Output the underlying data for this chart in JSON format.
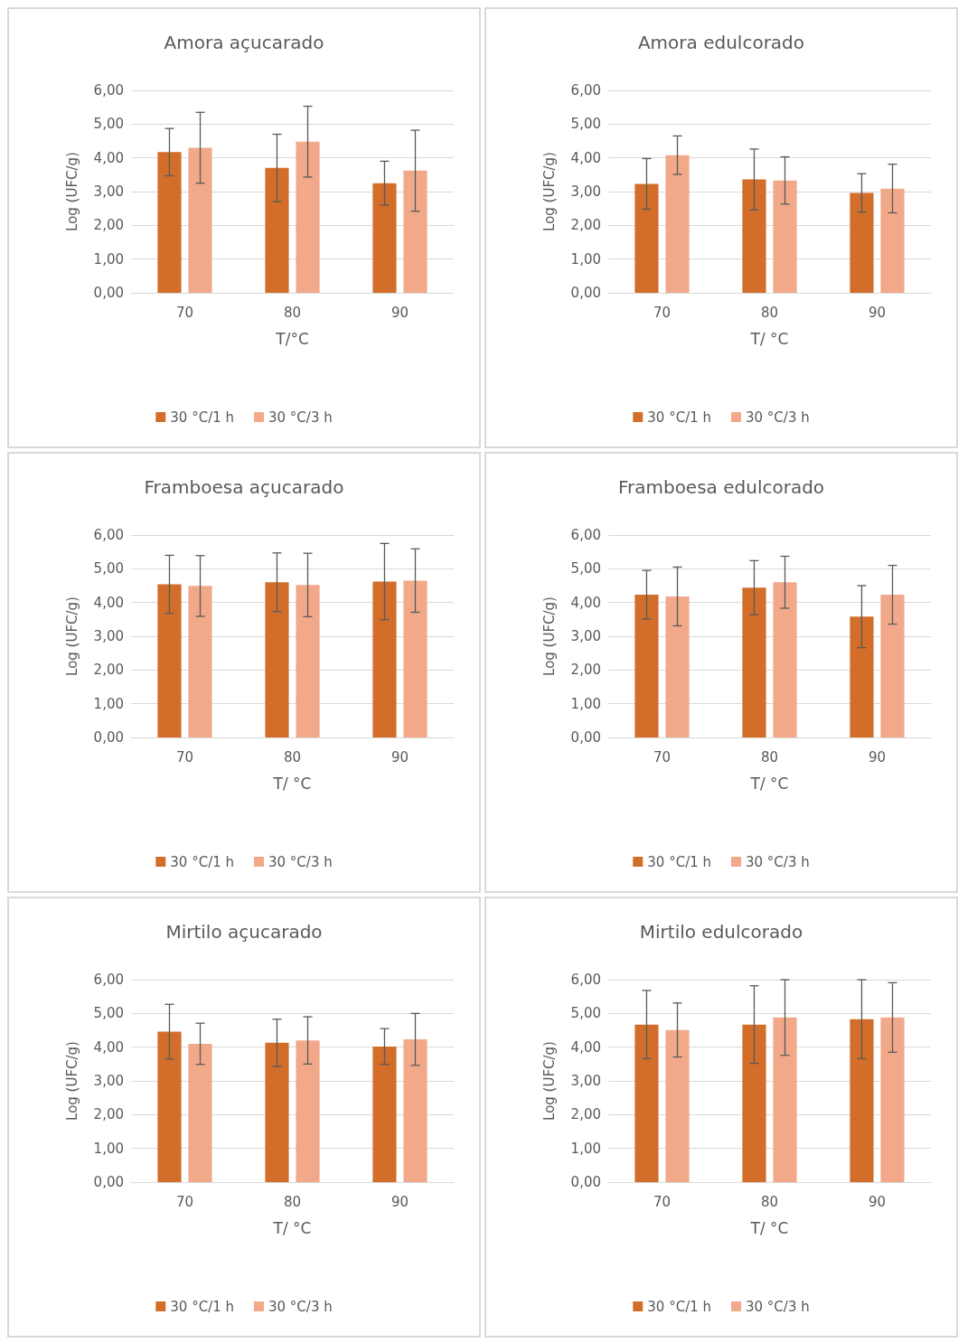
{
  "chart_data": [
    {
      "type": "bar",
      "title": "Amora açucarado",
      "xlabel": "T/°C",
      "ylabel": "Log (UFC/g)",
      "categories": [
        "70",
        "80",
        "90"
      ],
      "ylim": [
        0,
        6
      ],
      "yticks": [
        {
          "value": 0,
          "label": "0,00"
        },
        {
          "value": 1,
          "label": "1,00"
        },
        {
          "value": 2,
          "label": "2,00"
        },
        {
          "value": 3,
          "label": "3,00"
        },
        {
          "value": 4,
          "label": "4,00"
        },
        {
          "value": 5,
          "label": "5,00"
        },
        {
          "value": 6,
          "label": "6,00"
        }
      ],
      "grid": "y",
      "legend": "bottom",
      "series": [
        {
          "name": "30 °C/1 h",
          "color": "#d26e2a",
          "values": [
            4.17,
            3.7,
            3.25
          ],
          "errors": [
            0.7,
            1.0,
            0.65
          ]
        },
        {
          "name": "30 °C/3 h",
          "color": "#f2a98a",
          "values": [
            4.3,
            4.48,
            3.62
          ],
          "errors": [
            1.05,
            1.05,
            1.2
          ]
        }
      ]
    },
    {
      "type": "bar",
      "title": "Amora edulcorado",
      "xlabel": "T/ °C",
      "ylabel": "Log (UFC/g)",
      "categories": [
        "70",
        "80",
        "90"
      ],
      "ylim": [
        0,
        6
      ],
      "yticks": [
        {
          "value": 0,
          "label": "0,00"
        },
        {
          "value": 1,
          "label": "1,00"
        },
        {
          "value": 2,
          "label": "2,00"
        },
        {
          "value": 3,
          "label": "3,00"
        },
        {
          "value": 4,
          "label": "4,00"
        },
        {
          "value": 5,
          "label": "5,00"
        },
        {
          "value": 6,
          "label": "6,00"
        }
      ],
      "grid": "y",
      "legend": "bottom",
      "series": [
        {
          "name": "30 °C/1 h",
          "color": "#d26e2a",
          "values": [
            3.23,
            3.36,
            2.96
          ],
          "errors": [
            0.75,
            0.9,
            0.57
          ]
        },
        {
          "name": "30 °C/3 h",
          "color": "#f2a98a",
          "values": [
            4.08,
            3.33,
            3.09
          ],
          "errors": [
            0.57,
            0.7,
            0.72
          ]
        }
      ]
    },
    {
      "type": "bar",
      "title": "Framboesa açucarado",
      "xlabel": "T/ °C",
      "ylabel": "Log (UFC/g)",
      "categories": [
        "70",
        "80",
        "90"
      ],
      "ylim": [
        0,
        6
      ],
      "yticks": [
        {
          "value": 0,
          "label": "0,00"
        },
        {
          "value": 1,
          "label": "1,00"
        },
        {
          "value": 2,
          "label": "2,00"
        },
        {
          "value": 3,
          "label": "3,00"
        },
        {
          "value": 4,
          "label": "4,00"
        },
        {
          "value": 5,
          "label": "5,00"
        },
        {
          "value": 6,
          "label": "6,00"
        }
      ],
      "grid": "y",
      "legend": "bottom",
      "series": [
        {
          "name": "30 °C/1 h",
          "color": "#d26e2a",
          "values": [
            4.54,
            4.6,
            4.62
          ],
          "errors": [
            0.86,
            0.87,
            1.13
          ]
        },
        {
          "name": "30 °C/3 h",
          "color": "#f2a98a",
          "values": [
            4.49,
            4.52,
            4.65
          ],
          "errors": [
            0.9,
            0.94,
            0.94
          ]
        }
      ]
    },
    {
      "type": "bar",
      "title": "Framboesa edulcorado",
      "xlabel": "T/ °C",
      "ylabel": "Log (UFC/g)",
      "categories": [
        "70",
        "80",
        "90"
      ],
      "ylim": [
        0,
        6
      ],
      "yticks": [
        {
          "value": 0,
          "label": "0,00"
        },
        {
          "value": 1,
          "label": "1,00"
        },
        {
          "value": 2,
          "label": "2,00"
        },
        {
          "value": 3,
          "label": "3,00"
        },
        {
          "value": 4,
          "label": "4,00"
        },
        {
          "value": 5,
          "label": "5,00"
        },
        {
          "value": 6,
          "label": "6,00"
        }
      ],
      "grid": "y",
      "legend": "bottom",
      "series": [
        {
          "name": "30 °C/1 h",
          "color": "#d26e2a",
          "values": [
            4.23,
            4.44,
            3.58
          ],
          "errors": [
            0.72,
            0.8,
            0.92
          ]
        },
        {
          "name": "30 °C/3 h",
          "color": "#f2a98a",
          "values": [
            4.18,
            4.6,
            4.23
          ],
          "errors": [
            0.87,
            0.77,
            0.87
          ]
        }
      ]
    },
    {
      "type": "bar",
      "title": "Mirtilo açucarado",
      "xlabel": "T/ °C",
      "ylabel": "Log (UFC/g)",
      "categories": [
        "70",
        "80",
        "90"
      ],
      "ylim": [
        0,
        6
      ],
      "yticks": [
        {
          "value": 0,
          "label": "0,00"
        },
        {
          "value": 1,
          "label": "1,00"
        },
        {
          "value": 2,
          "label": "2,00"
        },
        {
          "value": 3,
          "label": "3,00"
        },
        {
          "value": 4,
          "label": "4,00"
        },
        {
          "value": 5,
          "label": "5,00"
        },
        {
          "value": 6,
          "label": "6,00"
        }
      ],
      "grid": "y",
      "legend": "bottom",
      "series": [
        {
          "name": "30 °C/1 h",
          "color": "#d26e2a",
          "values": [
            4.46,
            4.13,
            4.02
          ],
          "errors": [
            0.81,
            0.7,
            0.53
          ]
        },
        {
          "name": "30 °C/3 h",
          "color": "#f2a98a",
          "values": [
            4.1,
            4.2,
            4.23
          ],
          "errors": [
            0.61,
            0.7,
            0.77
          ]
        }
      ]
    },
    {
      "type": "bar",
      "title": "Mirtilo edulcorado",
      "xlabel": "T/ °C",
      "ylabel": "Log (UFC/g)",
      "categories": [
        "70",
        "80",
        "90"
      ],
      "ylim": [
        0,
        6
      ],
      "yticks": [
        {
          "value": 0,
          "label": "0,00"
        },
        {
          "value": 1,
          "label": "1,00"
        },
        {
          "value": 2,
          "label": "2,00"
        },
        {
          "value": 3,
          "label": "3,00"
        },
        {
          "value": 4,
          "label": "4,00"
        },
        {
          "value": 5,
          "label": "5,00"
        },
        {
          "value": 6,
          "label": "6,00"
        }
      ],
      "grid": "y",
      "legend": "bottom",
      "series": [
        {
          "name": "30 °C/1 h",
          "color": "#d26e2a",
          "values": [
            4.67,
            4.67,
            4.83
          ],
          "errors": [
            1.01,
            1.15,
            1.17
          ]
        },
        {
          "name": "30 °C/3 h",
          "color": "#f2a98a",
          "values": [
            4.51,
            4.88,
            4.88
          ],
          "errors": [
            0.8,
            1.12,
            1.03
          ]
        }
      ]
    }
  ]
}
